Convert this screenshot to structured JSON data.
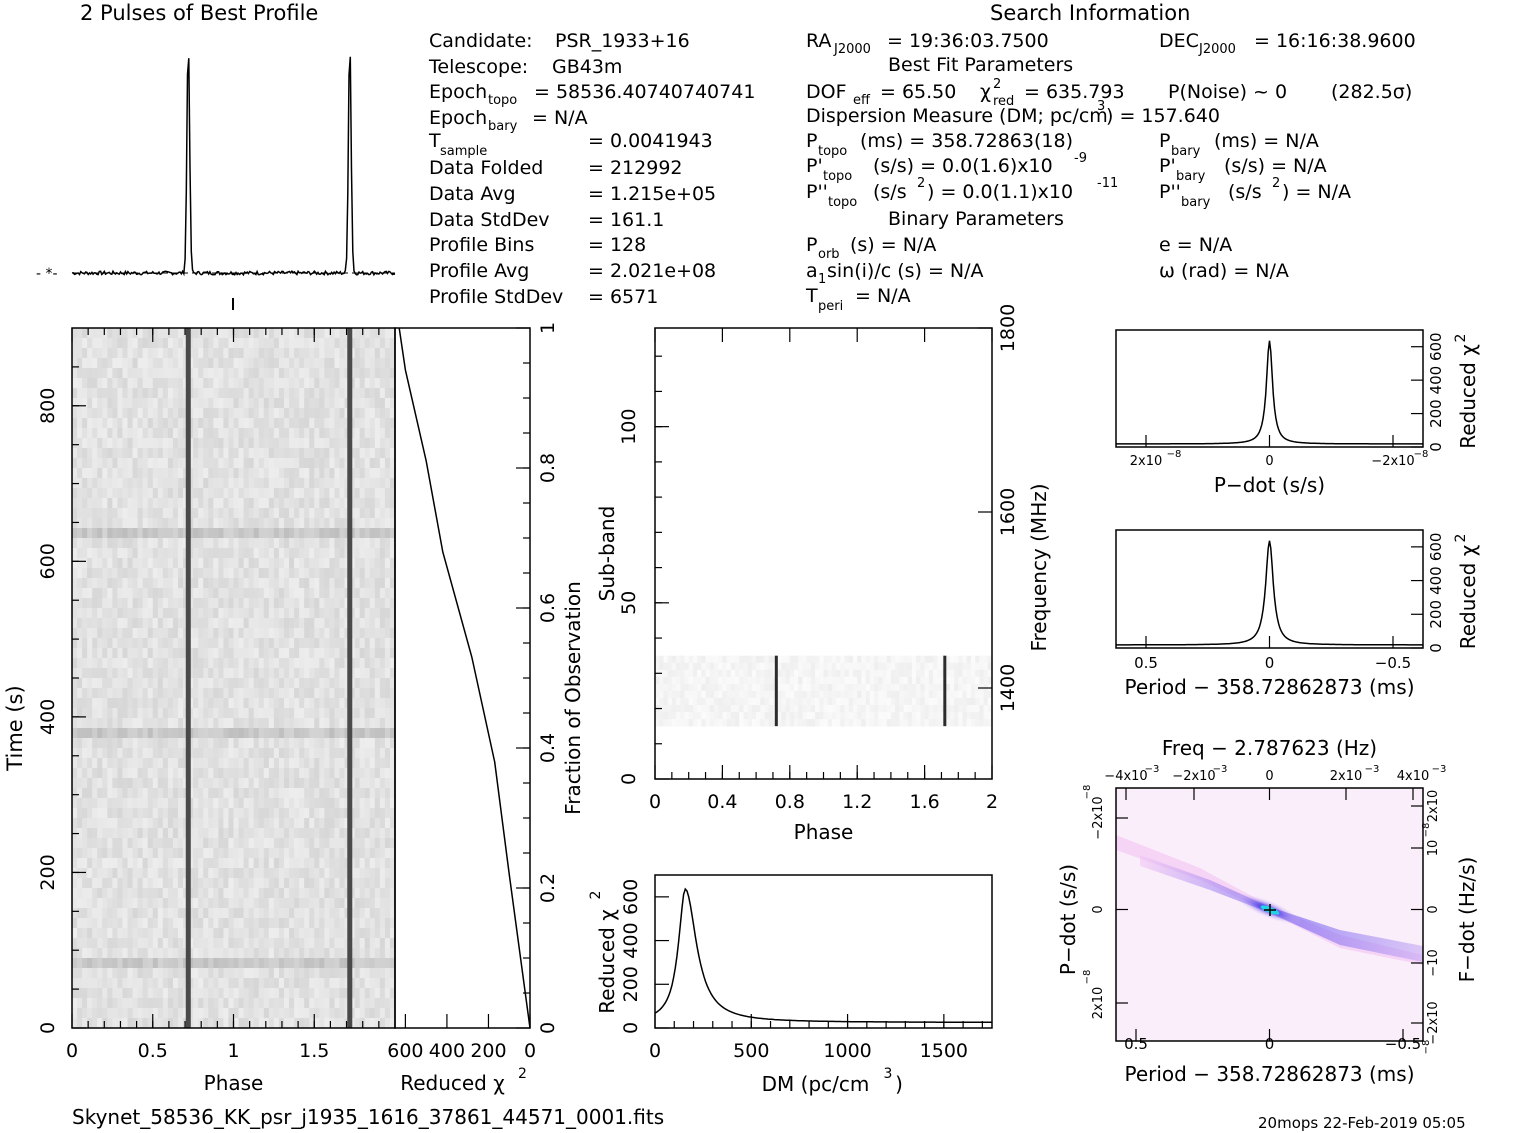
{
  "profile_title": "2 Pulses of Best Profile",
  "search_title": "Search Information",
  "footer_file": "Skynet_58536_KK_psr_j1935_1616_37861_44571_0001.fits",
  "footer_stamp": "20mops 22-Feb-2019 05:05",
  "info": {
    "candidate_label": "Candidate:",
    "candidate": "PSR_1933+16",
    "telescope_label": "Telescope:",
    "telescope": "GB43m",
    "epoch_topo_label": "Epoch",
    "epoch_topo_sub": "topo",
    "epoch_topo": "= 58536.40740740741",
    "epoch_bary_label": "Epoch",
    "epoch_bary_sub": "bary",
    "epoch_bary": "= N/A",
    "tsample_label": "T",
    "tsample_sub": "sample",
    "tsample": "=   0.0041943",
    "data_folded_label": "Data Folded",
    "data_folded": "=   212992",
    "data_avg_label": "Data Avg",
    "data_avg": "=   1.215e+05",
    "data_stddev_label": "Data StdDev",
    "data_stddev": "=   161.1",
    "profile_bins_label": "Profile Bins",
    "profile_bins": "=   128",
    "profile_avg_label": "Profile Avg",
    "profile_avg": "=   2.021e+08",
    "profile_stddev_label": "Profile StdDev",
    "profile_stddev": "=   6571",
    "ra_label": "RA",
    "ra_sub": "J2000",
    "ra": "= 19:36:03.7500",
    "dec_label": "DEC",
    "dec_sub": "J2000",
    "dec": "= 16:16:38.9600",
    "best_fit_header": "Best Fit Parameters",
    "dof_label": "DOF",
    "dof_sub": "eff",
    "dof": "= 65.50",
    "chi_label": "χ",
    "chi_sup": "2",
    "chi_sub": "red",
    "chi": "= 635.793",
    "pnoise": "P(Noise) ~ 0",
    "sigma": "(282.5σ)",
    "dm_line": "Dispersion Measure (DM; pc/cm",
    "dm_sup": "3",
    "dm_value": ") = 157.640",
    "ptopo_label": "P",
    "ptopo_sub": "topo",
    "ptopo": "(ms) =  358.72863(18)",
    "pbary_label": "P",
    "pbary_sub": "bary",
    "pbary": "(ms) = N/A",
    "pdtopo_label": "P'",
    "pdtopo_sub": "topo",
    "pdtopo": "(s/s) = 0.0(1.6)x10",
    "pdtopo_exp": "-9",
    "pdbary_label": "P'",
    "pdbary_sub": "bary",
    "pdbary": "(s/s) = N/A",
    "pddtopo_label": "P''",
    "pddtopo_sub": "topo",
    "pddtopo": "(s/s",
    "pddtopo_sup": "2",
    "pddtopo_val": ") = 0.0(1.1)x10",
    "pddtopo_exp": "-11",
    "pddbary_label": "P''",
    "pddbary_sub": "bary",
    "pddbary": "(s/s",
    "pddbary_sup": "2",
    "pddbary_val": ") = N/A",
    "binary_header": "Binary Parameters",
    "porb_label": "P",
    "porb_sub": "orb",
    "porb": "(s) = N/A",
    "e": "e = N/A",
    "a1": "a",
    "a1_sub": "1",
    "a1_rest": "sin(i)/c (s) = N/A",
    "omega": "ω (rad) = N/A",
    "tperi_label": "T",
    "tperi_sub": "peri",
    "tperi": "= N/A"
  },
  "chart_data": [
    {
      "id": "profile",
      "type": "line",
      "title": "2 Pulses of Best Profile",
      "x": [
        0,
        2
      ],
      "pulse_phases": [
        0.72,
        1.72
      ],
      "pulse_peak": 1.0,
      "baseline": 0.0
    },
    {
      "id": "time-phase",
      "type": "heatmap",
      "xlabel": "Phase",
      "ylabel": "Time (s)",
      "xlim": [
        0,
        2
      ],
      "ylim": [
        0,
        900
      ],
      "xticks": [
        "0",
        "0.5",
        "1",
        "1.5"
      ],
      "yticks": [
        "0",
        "200",
        "400",
        "600",
        "800"
      ],
      "pulse_phases": [
        0.72,
        1.72
      ]
    },
    {
      "id": "reduced-chi-vs-time",
      "type": "line",
      "xlabel": "Reduced χ",
      "xlabel_sup": "2",
      "ylabel": "Fraction of Observation",
      "xlim": [
        650,
        0
      ],
      "ylim": [
        0,
        1
      ],
      "xticks": [
        "600",
        "400",
        "200",
        "0"
      ],
      "yticks": [
        "0",
        "0.2",
        "0.4",
        "0.6",
        "0.8",
        "1"
      ],
      "points": [
        [
          0,
          0
        ],
        [
          100,
          0.22
        ],
        [
          170,
          0.38
        ],
        [
          280,
          0.53
        ],
        [
          420,
          0.68
        ],
        [
          500,
          0.81
        ],
        [
          600,
          0.94
        ],
        [
          630,
          1.0
        ]
      ]
    },
    {
      "id": "subband-phase",
      "type": "heatmap",
      "xlabel": "Phase",
      "ylabel": "Sub-band",
      "ylabel_right": "Frequency (MHz)",
      "xlim": [
        0,
        2
      ],
      "ylim": [
        0,
        128
      ],
      "xticks": [
        "0",
        "0.4",
        "0.8",
        "1.2",
        "1.6",
        "2"
      ],
      "yticks": [
        "0",
        "50",
        "100"
      ],
      "yticks_right": [
        "1400",
        "1600",
        "1800"
      ],
      "band_range": [
        15,
        35
      ],
      "pulse_phases": [
        0.72,
        1.72
      ]
    },
    {
      "id": "dm-curve",
      "type": "line",
      "xlabel": "DM (pc/cm",
      "xlabel_sup": "3",
      "xlabel_end": ")",
      "ylabel": "Reduced χ",
      "ylabel_sup": "2",
      "xlim": [
        0,
        1750
      ],
      "ylim": [
        0,
        700
      ],
      "xticks": [
        "0",
        "500",
        "1000",
        "1500"
      ],
      "yticks": [
        "0",
        "200",
        "400",
        "600"
      ],
      "peak_dm": 157.64,
      "peak_value": 635.793,
      "floor_value": 25
    },
    {
      "id": "pdot-curve",
      "type": "line",
      "xlabel": "P−dot (s/s)",
      "ylabel": "Reduced χ",
      "ylabel_sup": "2",
      "xticks": [
        "2x10",
        "0",
        "−2x10"
      ],
      "xtick_exp": "−8",
      "yticks": [
        "0",
        "200",
        "400",
        "600"
      ],
      "peak_value": 635.793
    },
    {
      "id": "period-curve",
      "type": "line",
      "xlabel": "Period − 358.72862873 (ms)",
      "ylabel": "Reduced χ",
      "ylabel_sup": "2",
      "xticks": [
        "0.5",
        "0",
        "−0.5"
      ],
      "yticks": [
        "0",
        "200",
        "400",
        "600"
      ],
      "peak_value": 635.793
    },
    {
      "id": "p-pdot-plane",
      "type": "heatmap",
      "title": "Freq − 2.787623 (Hz)",
      "xlabel": "Period − 358.72862873 (ms)",
      "ylabel": "P−dot (s/s)",
      "ylabel_right": "F−dot (Hz/s)",
      "xticks": [
        "0.5",
        "0",
        "−0.5"
      ],
      "xticks_top": [
        "−4x10",
        "−2x10",
        "0",
        "2x10",
        "4x10"
      ],
      "xticks_top_exp": "−3",
      "yticks": [
        "2x10",
        "0",
        "−2x10"
      ],
      "ytick_exp": "−8",
      "yticks_right": [
        "−2x10",
        "−10",
        "0",
        "10",
        "2x10"
      ],
      "ytick_right_exp": "−8"
    }
  ]
}
